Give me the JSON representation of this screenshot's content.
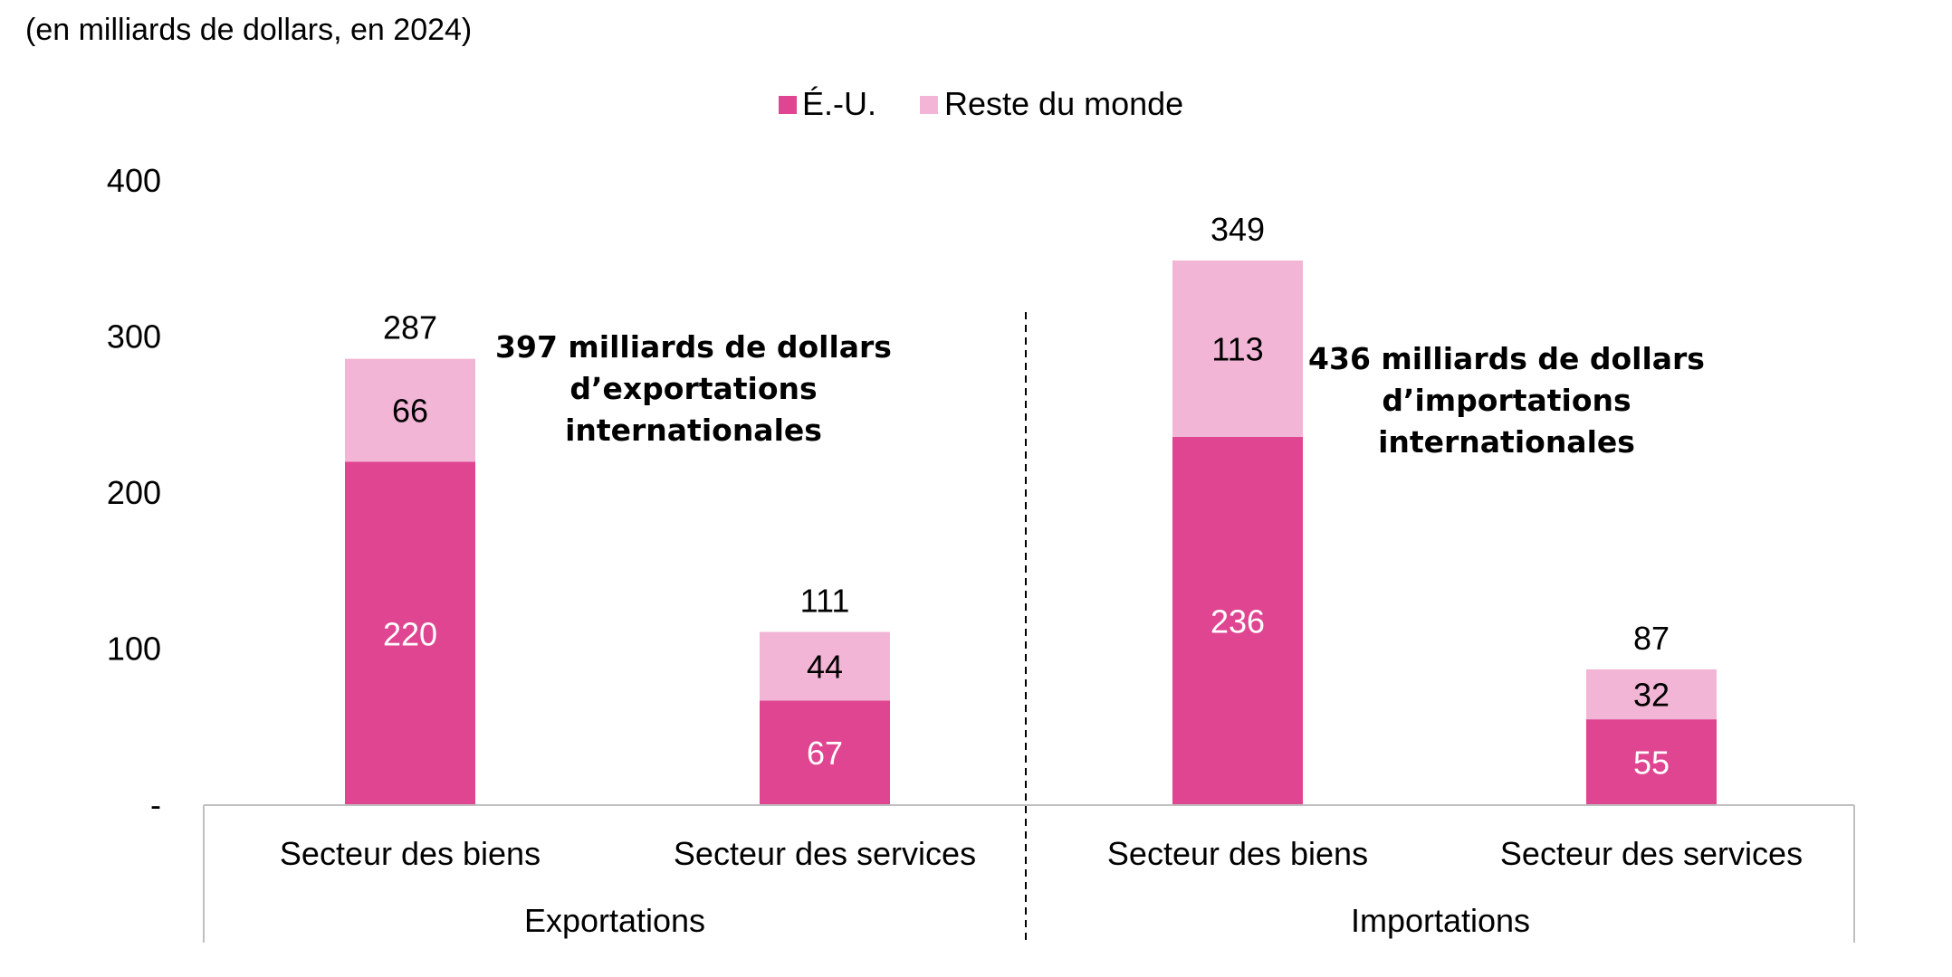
{
  "chart_data": {
    "type": "bar",
    "stacked": true,
    "subtitle": "(en milliards de dollars, en 2024)",
    "groups": [
      {
        "label": "Exportations",
        "categories": [
          "Secteur des biens",
          "Secteur des services"
        ]
      },
      {
        "label": "Importations",
        "categories": [
          "Secteur des biens",
          "Secteur des services"
        ]
      }
    ],
    "categories": [
      "Secteur des biens",
      "Secteur des services",
      "Secteur des biens",
      "Secteur des services"
    ],
    "series": [
      {
        "name": "É.-U.",
        "values": [
          220,
          67,
          236,
          55
        ]
      },
      {
        "name": "Reste du monde",
        "values": [
          66,
          44,
          113,
          32
        ]
      }
    ],
    "totals": [
      "287",
      "111",
      "349",
      "87"
    ],
    "annotations": [
      {
        "lines": [
          "397 milliards de dollars",
          "d’exportations",
          "internationales"
        ]
      },
      {
        "lines": [
          "436 milliards de dollars",
          "d’importations",
          "internationales"
        ]
      }
    ],
    "yticks": [
      {
        "value": 0,
        "label": "-"
      },
      {
        "value": 100,
        "label": "100"
      },
      {
        "value": 200,
        "label": "200"
      },
      {
        "value": 300,
        "label": "300"
      },
      {
        "value": 400,
        "label": "400"
      }
    ],
    "ylim": [
      0,
      400
    ],
    "grid": false,
    "legend_position": "top-center",
    "colors": {
      "eu": "#e04591",
      "rest": "#f2b5d5",
      "axis": "#bfbfbf",
      "text": "#000000",
      "label_on_dark": "#ffffff"
    }
  }
}
